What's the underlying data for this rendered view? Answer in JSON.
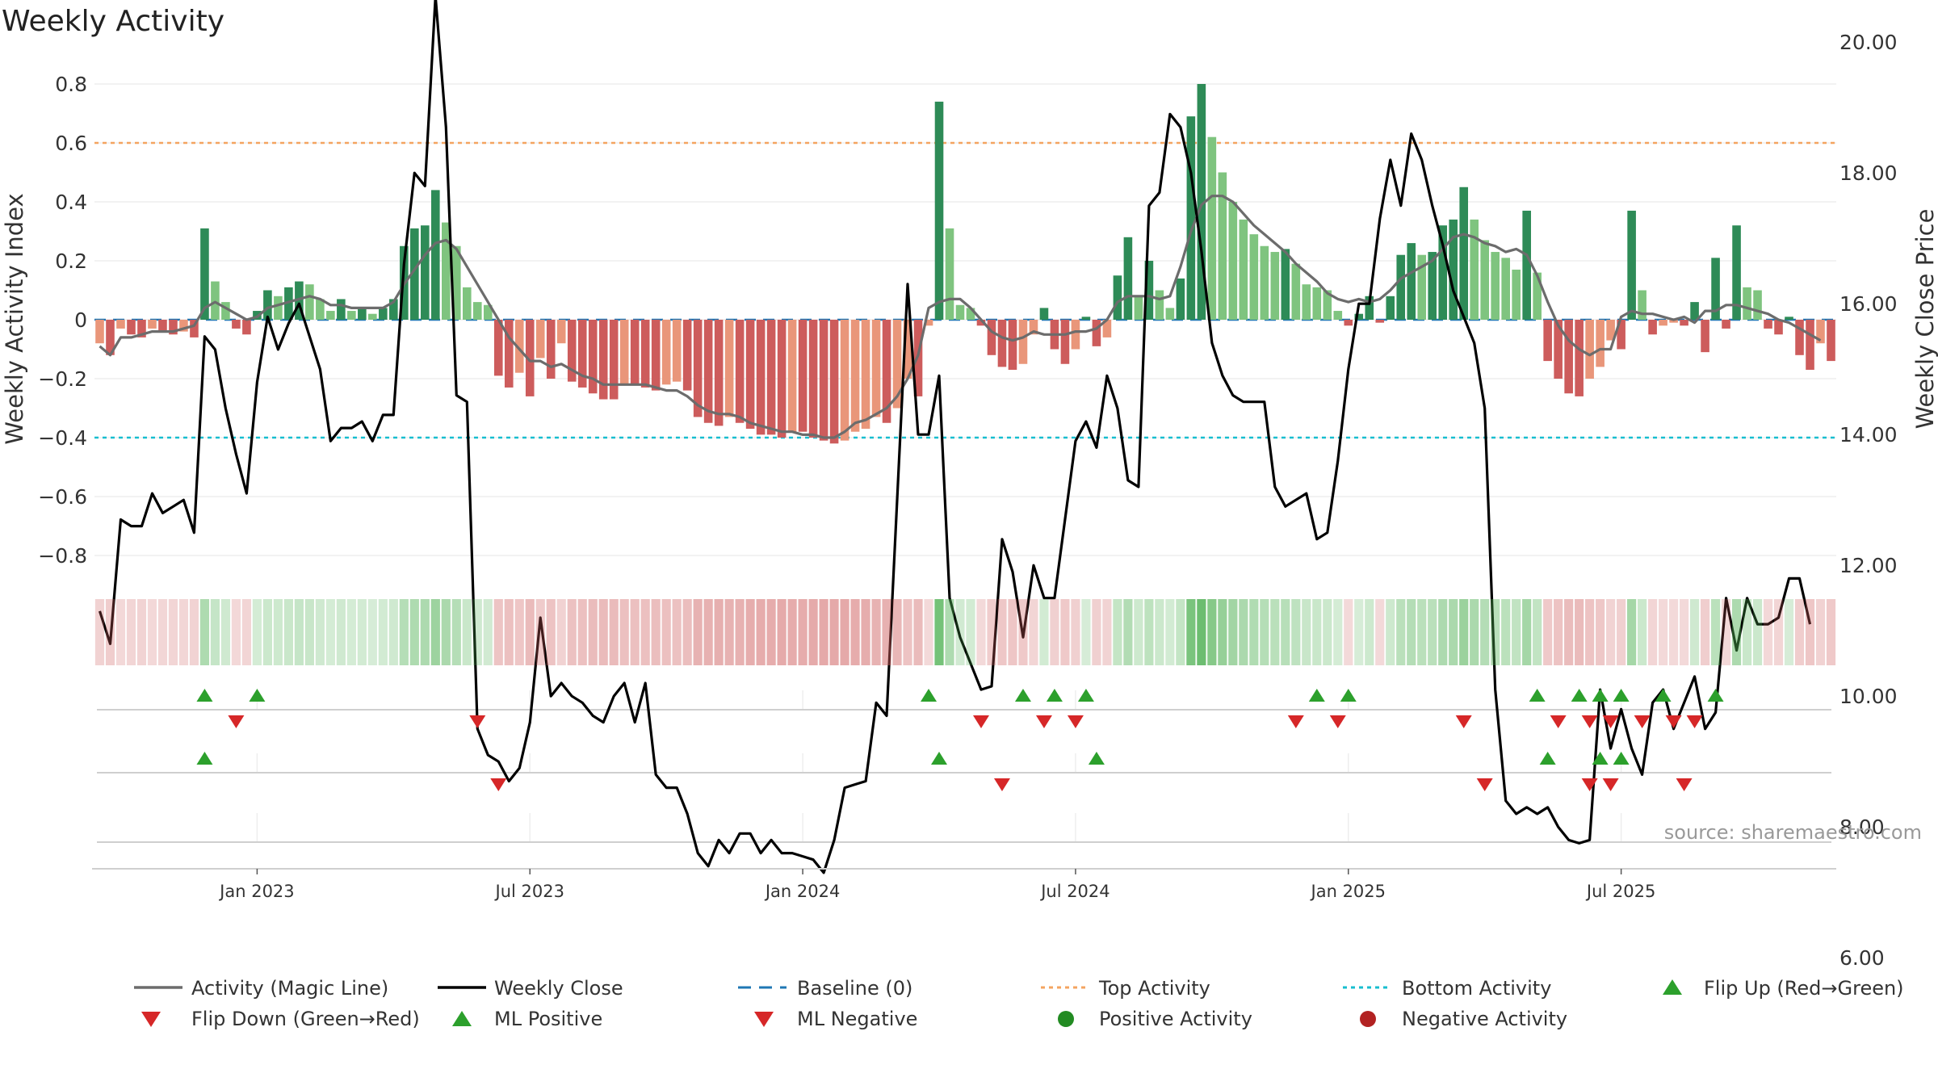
{
  "colors": {
    "green_dark": "#2e8b57",
    "green_light": "#7fc47f",
    "red_dark": "#cd5c5c",
    "red_light": "#e9967a",
    "magic_line": "#6c6c6c",
    "close_line": "#000000",
    "baseline": "#1f77b4",
    "top_line": "#f4a460",
    "bottom_line": "#17becf",
    "flip_up": "#2ca02c",
    "flip_down": "#d62728",
    "grid": "#e6e6e6"
  },
  "chart_data": {
    "type": "bar+line",
    "title": "Weekly Activity",
    "ylabel_left": "Weekly Activity Index",
    "ylabel_right": "Weekly Close Price",
    "ylim_left": [
      -0.88,
      0.82
    ],
    "ylim_right": [
      5.6,
      21.2
    ],
    "yticks_left": [
      "0.8",
      "0.6",
      "0.4",
      "0.2",
      "0",
      "−0.2",
      "−0.4",
      "−0.6",
      "−0.8"
    ],
    "yticks_right": [
      "20.00",
      "18.00",
      "16.00",
      "14.00",
      "12.00",
      "10.00",
      "8.00",
      "6.00"
    ],
    "x_tick_labels": [
      "Jan 2023",
      "Jul 2023",
      "Jan 2024",
      "Jul 2024",
      "Jan 2025",
      "Jul 2025"
    ],
    "x_tick_week_index": [
      15,
      41,
      67,
      93,
      119,
      145
    ],
    "top_activity": 0.6,
    "bottom_activity": -0.4,
    "baseline": 0,
    "activity": [
      -0.08,
      -0.12,
      -0.03,
      -0.05,
      -0.06,
      -0.03,
      -0.04,
      -0.05,
      -0.04,
      -0.06,
      0.31,
      0.13,
      0.06,
      -0.03,
      -0.05,
      0.03,
      0.1,
      0.08,
      0.11,
      0.13,
      0.12,
      0.07,
      0.03,
      0.07,
      0.03,
      0.04,
      0.02,
      0.04,
      0.07,
      0.25,
      0.31,
      0.32,
      0.44,
      0.33,
      0.25,
      0.11,
      0.06,
      0.05,
      -0.19,
      -0.23,
      -0.18,
      -0.26,
      -0.13,
      -0.2,
      -0.08,
      -0.21,
      -0.23,
      -0.25,
      -0.27,
      -0.27,
      -0.22,
      -0.22,
      -0.23,
      -0.24,
      -0.22,
      -0.21,
      -0.24,
      -0.33,
      -0.35,
      -0.36,
      -0.33,
      -0.35,
      -0.37,
      -0.39,
      -0.39,
      -0.4,
      -0.38,
      -0.38,
      -0.4,
      -0.41,
      -0.42,
      -0.41,
      -0.38,
      -0.37,
      -0.33,
      -0.35,
      -0.3,
      -0.2,
      -0.26,
      -0.02,
      0.74,
      0.31,
      0.05,
      0.04,
      -0.02,
      -0.12,
      -0.16,
      -0.17,
      -0.15,
      -0.05,
      0.04,
      -0.1,
      -0.15,
      -0.1,
      0.01,
      -0.09,
      -0.06,
      0.15,
      0.28,
      0.08,
      0.2,
      0.1,
      0.04,
      0.14,
      0.69,
      0.8,
      0.62,
      0.5,
      0.4,
      0.34,
      0.29,
      0.25,
      0.23,
      0.24,
      0.19,
      0.12,
      0.11,
      0.1,
      0.03,
      -0.02,
      0.02,
      0.08,
      -0.01,
      0.08,
      0.22,
      0.26,
      0.22,
      0.23,
      0.32,
      0.34,
      0.45,
      0.34,
      0.27,
      0.23,
      0.21,
      0.17,
      0.37,
      0.16,
      -0.14,
      -0.2,
      -0.25,
      -0.26,
      -0.2,
      -0.16,
      -0.07,
      -0.1,
      0.37,
      0.1,
      -0.05,
      -0.02,
      -0.01,
      -0.02,
      0.06,
      -0.11,
      0.21,
      -0.03,
      0.32,
      0.11,
      0.1,
      -0.03,
      -0.05,
      0.01,
      -0.12,
      -0.17,
      -0.08,
      -0.14
    ],
    "magic_line": [
      -0.09,
      -0.12,
      -0.06,
      -0.06,
      -0.05,
      -0.04,
      -0.04,
      -0.04,
      -0.03,
      -0.02,
      0.04,
      0.06,
      0.04,
      0.02,
      0.0,
      0.01,
      0.04,
      0.05,
      0.06,
      0.07,
      0.08,
      0.07,
      0.05,
      0.05,
      0.04,
      0.04,
      0.04,
      0.04,
      0.06,
      0.12,
      0.17,
      0.22,
      0.26,
      0.27,
      0.24,
      0.18,
      0.12,
      0.06,
      0.0,
      -0.06,
      -0.1,
      -0.14,
      -0.14,
      -0.16,
      -0.15,
      -0.17,
      -0.19,
      -0.2,
      -0.22,
      -0.22,
      -0.22,
      -0.22,
      -0.22,
      -0.23,
      -0.24,
      -0.24,
      -0.26,
      -0.29,
      -0.31,
      -0.32,
      -0.32,
      -0.33,
      -0.35,
      -0.36,
      -0.37,
      -0.38,
      -0.38,
      -0.39,
      -0.39,
      -0.4,
      -0.4,
      -0.38,
      -0.35,
      -0.34,
      -0.32,
      -0.3,
      -0.26,
      -0.2,
      -0.12,
      0.04,
      0.06,
      0.07,
      0.07,
      0.04,
      0.0,
      -0.04,
      -0.06,
      -0.07,
      -0.06,
      -0.04,
      -0.05,
      -0.05,
      -0.05,
      -0.04,
      -0.04,
      -0.03,
      0.0,
      0.06,
      0.08,
      0.08,
      0.08,
      0.07,
      0.08,
      0.18,
      0.3,
      0.39,
      0.42,
      0.42,
      0.4,
      0.36,
      0.32,
      0.29,
      0.26,
      0.23,
      0.19,
      0.16,
      0.13,
      0.09,
      0.07,
      0.06,
      0.07,
      0.06,
      0.07,
      0.1,
      0.14,
      0.16,
      0.18,
      0.2,
      0.24,
      0.28,
      0.29,
      0.28,
      0.26,
      0.25,
      0.23,
      0.24,
      0.22,
      0.15,
      0.06,
      -0.02,
      -0.07,
      -0.1,
      -0.12,
      -0.1,
      -0.1,
      0.01,
      0.03,
      0.02,
      0.02,
      0.01,
      0.0,
      0.01,
      -0.01,
      0.03,
      0.03,
      0.05,
      0.05,
      0.04,
      0.03,
      0.02,
      0.0,
      -0.01,
      -0.03,
      -0.05,
      -0.07
    ],
    "weekly_close": [
      11.3,
      10.8,
      12.7,
      12.6,
      12.6,
      13.1,
      12.8,
      12.9,
      13.0,
      12.5,
      15.5,
      15.3,
      14.4,
      13.7,
      13.1,
      14.8,
      15.8,
      15.3,
      15.7,
      16.0,
      15.5,
      15.0,
      13.9,
      14.1,
      14.1,
      14.2,
      13.9,
      14.3,
      14.3,
      16.6,
      18.0,
      17.8,
      20.7,
      18.7,
      14.6,
      14.5,
      9.5,
      9.1,
      9.0,
      8.7,
      8.9,
      9.6,
      11.2,
      10.0,
      10.2,
      10.0,
      9.9,
      9.7,
      9.6,
      10.0,
      10.2,
      9.6,
      10.2,
      8.8,
      8.6,
      8.6,
      8.2,
      7.6,
      7.4,
      7.8,
      7.6,
      7.9,
      7.9,
      7.6,
      7.8,
      7.6,
      7.6,
      7.55,
      7.5,
      7.3,
      7.8,
      8.6,
      8.65,
      8.7,
      9.9,
      9.7,
      13.0,
      16.3,
      14.0,
      14.0,
      14.9,
      11.5,
      10.9,
      10.5,
      10.1,
      10.15,
      12.4,
      11.9,
      10.9,
      12.0,
      11.5,
      11.5,
      12.7,
      13.9,
      14.2,
      13.8,
      14.9,
      14.4,
      13.3,
      13.2,
      17.5,
      17.7,
      18.9,
      18.7,
      18.0,
      16.8,
      15.4,
      14.9,
      14.6,
      14.5,
      14.5,
      14.5,
      13.2,
      12.9,
      13.0,
      13.1,
      12.4,
      12.5,
      13.6,
      15.0,
      16.0,
      16.0,
      17.3,
      18.2,
      17.5,
      18.6,
      18.2,
      17.5,
      16.9,
      16.2,
      15.8,
      15.4,
      14.4,
      10.1,
      8.4,
      8.2,
      8.3,
      8.2,
      8.3,
      8.0,
      7.8,
      7.75,
      7.8,
      10.1,
      9.2,
      9.8,
      9.2,
      8.8,
      9.9,
      10.1,
      9.5,
      9.9,
      10.3,
      9.5,
      9.75,
      11.5,
      10.7,
      11.5,
      11.1,
      11.1,
      11.2,
      11.8,
      11.8,
      11.1
    ],
    "flip_up": [
      10,
      15,
      79,
      88,
      91,
      94,
      116,
      119,
      137,
      141,
      143,
      145,
      149,
      154
    ],
    "flip_down": [
      13,
      36,
      84,
      90,
      93,
      114,
      118,
      130,
      139,
      142,
      144,
      147,
      150,
      152
    ],
    "ml_positive": [
      10,
      80,
      95,
      138,
      143,
      145
    ],
    "ml_negative": [
      38,
      86,
      132,
      142,
      144,
      151
    ],
    "positive_activity": [],
    "negative_activity": [],
    "source": "source: sharemaestro.com"
  },
  "legend": {
    "row1": [
      "Activity (Magic Line)",
      "Weekly Close",
      "Baseline (0)",
      "Top Activity",
      "Bottom Activity",
      "Flip Up (Red→Green)"
    ],
    "row2": [
      "Flip Down (Green→Red)",
      "ML Positive",
      "ML Negative",
      "Positive Activity",
      "Negative Activity"
    ]
  }
}
